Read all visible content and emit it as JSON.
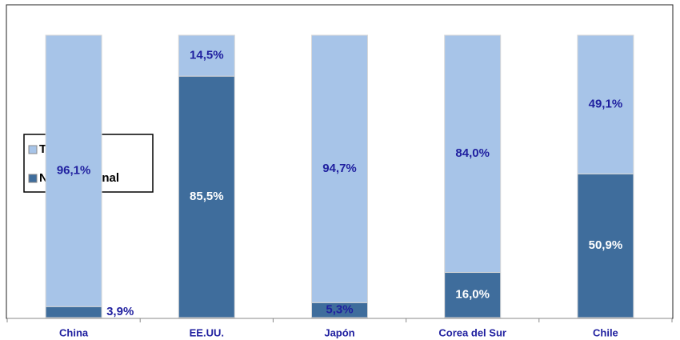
{
  "chart_data": {
    "type": "stacked_bar_100",
    "categories": [
      "China",
      "EE.UU.",
      "Japón",
      "Corea del Sur",
      "Chile"
    ],
    "series": [
      {
        "name": "No tradicional",
        "color": "#3f6d9c",
        "values": [
          3.9,
          85.5,
          5.3,
          16.0,
          50.9
        ],
        "value_labels": [
          "3,9%",
          "85,5%",
          "5,3%",
          "16,0%",
          "50,9%"
        ]
      },
      {
        "name": "Tradicional",
        "color": "#a7c4e8",
        "values": [
          96.1,
          14.5,
          94.7,
          84.0,
          49.1
        ],
        "value_labels": [
          "96,1%",
          "14,5%",
          "94,7%",
          "84,0%",
          "49,1%"
        ]
      }
    ],
    "ylim": [
      0,
      100
    ],
    "legend": "left"
  }
}
